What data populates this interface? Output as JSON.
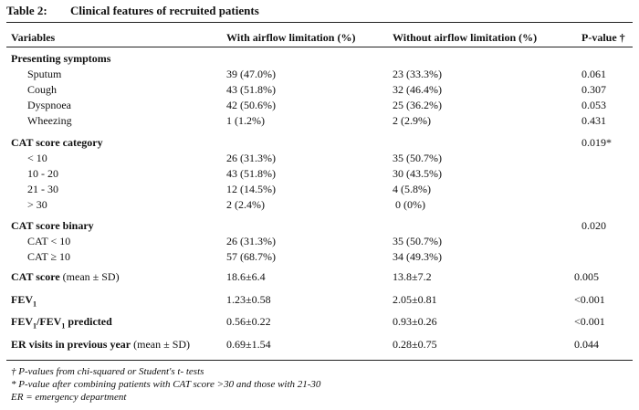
{
  "caption": {
    "label": "Table 2:",
    "title": "Clinical features of recruited patients"
  },
  "headers": {
    "variables": "Variables",
    "with": "With airflow limitation (%)",
    "without": "Without airflow limitation (%)",
    "p": "P-value †"
  },
  "sections": {
    "presenting": {
      "title": "Presenting symptoms",
      "rows": [
        {
          "label": "Sputum",
          "with": "39 (47.0%)",
          "without": "23 (33.3%)",
          "p": "0.061"
        },
        {
          "label": "Cough",
          "with": "43 (51.8%)",
          "without": "32 (46.4%)",
          "p": "0.307"
        },
        {
          "label": "Dyspnoea",
          "with": "42 (50.6%)",
          "without": "25 (36.2%)",
          "p": "0.053"
        },
        {
          "label": "Wheezing",
          "with": "1 (1.2%)",
          "without": "2 (2.9%)",
          "p": "0.431"
        }
      ]
    },
    "cat_category": {
      "title": "CAT score category",
      "p": "0.019*",
      "rows": [
        {
          "label": "< 10",
          "with": "26 (31.3%)",
          "without": "35 (50.7%)"
        },
        {
          "label": "10 - 20",
          "with": "43 (51.8%)",
          "without": "30 (43.5%)"
        },
        {
          "label": "21 - 30",
          "with": "12 (14.5%)",
          "without": "4 (5.8%)"
        },
        {
          "label": "> 30",
          "with": "2 (2.4%)",
          "without": "0 (0%)"
        }
      ]
    },
    "cat_binary": {
      "title": "CAT score binary",
      "p": "0.020",
      "rows": [
        {
          "label": "CAT < 10",
          "with": "26 (31.3%)",
          "without": "35 (50.7%)"
        },
        {
          "label": "CAT ≥ 10",
          "with": "57 (68.7%)",
          "without": "34 (49.3%)"
        }
      ]
    },
    "cat_score": {
      "title_bold": "CAT score",
      "title_rest": " (mean ± SD)",
      "with": "18.6±6.4",
      "without": "13.8±7.2",
      "p": "0.005"
    },
    "fev1": {
      "title": "FEV",
      "sub": "1",
      "with": "1.23±0.58",
      "without": "2.05±0.81",
      "p": "<0.001"
    },
    "fev1_pred": {
      "t1": "FEV",
      "s1": "1",
      "t2": "/FEV",
      "s2": "1",
      "t3": " predicted",
      "with": "0.56±0.22",
      "without": "0.93±0.26",
      "p": "<0.001"
    },
    "er": {
      "title_bold": "ER visits in previous year",
      "title_rest": " (mean ± SD)",
      "with": "0.69±1.54",
      "without": "0.28±0.75",
      "p": "0.044"
    }
  },
  "footnotes": [
    "† P-values from chi-squared or Student's t- tests",
    "* P-value after combining patients with CAT score >30 and those with 21-30",
    "ER = emergency department"
  ]
}
